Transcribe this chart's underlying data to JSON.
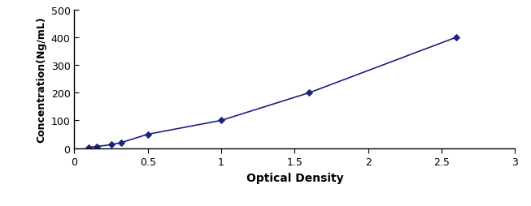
{
  "x": [
    0.1,
    0.15,
    0.25,
    0.32,
    0.5,
    1.0,
    1.6,
    2.6
  ],
  "y": [
    3,
    6,
    12,
    20,
    50,
    100,
    200,
    400
  ],
  "line_color": "#1a237e",
  "marker": "D",
  "marker_size": 4,
  "marker_color": "#1a237e",
  "xlabel": "Optical Density",
  "ylabel": "Concentration(Ng/mL)",
  "xlim": [
    0,
    3
  ],
  "ylim": [
    0,
    500
  ],
  "xticks": [
    0,
    0.5,
    1,
    1.5,
    2,
    2.5,
    3
  ],
  "yticks": [
    0,
    100,
    200,
    300,
    400,
    500
  ],
  "xlabel_fontsize": 10,
  "ylabel_fontsize": 9,
  "tick_fontsize": 9,
  "line_width": 1.2
}
